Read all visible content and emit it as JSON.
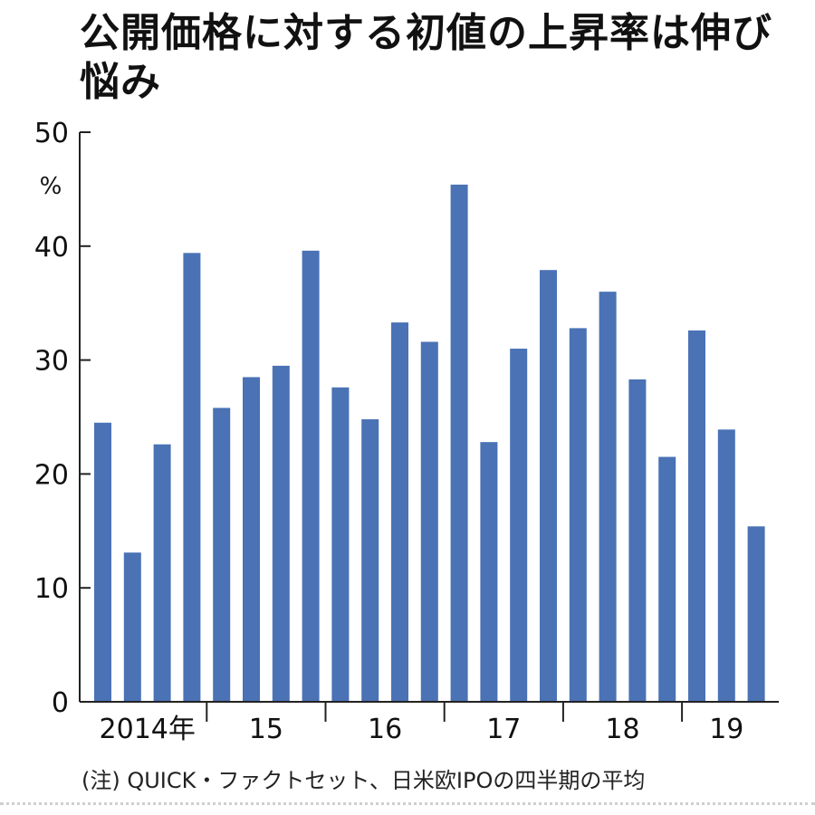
{
  "title": "公開価格に対する初値の上昇率は伸び悩み",
  "note": "(注) QUICK・ファクトセット、日米欧IPOの四半期の平均",
  "colors": {
    "bar": "#4a72b5",
    "axis": "#222222"
  },
  "chart_data": {
    "type": "bar",
    "unit": "%",
    "ylim": [
      0,
      50
    ],
    "yticks": [
      0,
      10,
      20,
      30,
      40,
      50
    ],
    "year_labels": [
      "2014年",
      "15",
      "16",
      "17",
      "18",
      "19"
    ],
    "quarters_per_year": 4,
    "values": [
      24.5,
      13.1,
      22.6,
      39.4,
      25.8,
      28.5,
      29.5,
      39.6,
      27.6,
      24.8,
      33.3,
      31.6,
      45.4,
      22.8,
      31.0,
      37.9,
      32.8,
      36.0,
      28.3,
      21.5,
      32.6,
      23.9,
      15.4
    ],
    "grid": false
  }
}
